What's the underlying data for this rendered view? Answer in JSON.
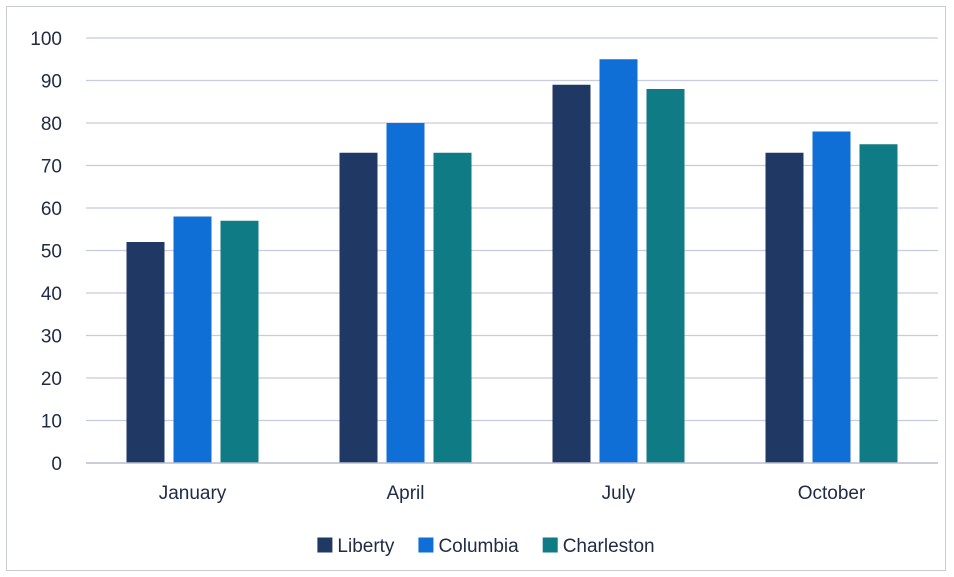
{
  "chart_data": {
    "type": "bar",
    "title": "",
    "xlabel": "",
    "ylabel": "",
    "categories": [
      "January",
      "April",
      "July",
      "October"
    ],
    "series": [
      {
        "name": "Liberty",
        "color": "#1f3864",
        "values": [
          52,
          73,
          89,
          73
        ]
      },
      {
        "name": "Columbia",
        "color": "#0f6fd6",
        "values": [
          58,
          80,
          95,
          78
        ]
      },
      {
        "name": "Charleston",
        "color": "#0f7b84",
        "values": [
          57,
          73,
          88,
          75
        ]
      }
    ],
    "ylim": [
      0,
      100
    ],
    "yticks": [
      0,
      10,
      20,
      30,
      40,
      50,
      60,
      70,
      80,
      90,
      100
    ],
    "grid": true,
    "legend": "bottom"
  }
}
